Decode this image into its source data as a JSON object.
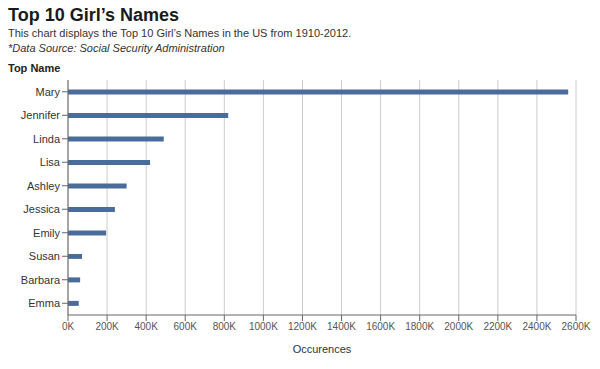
{
  "chart_data": {
    "type": "bar",
    "title": "Top 10 Girl’s Names",
    "subtitle": "This chart displays the Top 10 Girl’s Names in the US from 1910-2012.",
    "source": "*Data Source: Social Security Administration",
    "ylabel": "Top Name",
    "xlabel": "Occurences",
    "orientation": "horizontal",
    "categories": [
      "Mary",
      "Jennifer",
      "Linda",
      "Lisa",
      "Ashley",
      "Jessica",
      "Emily",
      "Susan",
      "Barbara",
      "Emma"
    ],
    "values": [
      2560000,
      820000,
      490000,
      420000,
      300000,
      240000,
      195000,
      72000,
      62000,
      55000
    ],
    "color": "#4a6c9b",
    "xlim": [
      0,
      2600000
    ],
    "xticks": [
      {
        "value": 0,
        "label": "0K"
      },
      {
        "value": 200000,
        "label": "200K"
      },
      {
        "value": 400000,
        "label": "400K"
      },
      {
        "value": 600000,
        "label": "600K"
      },
      {
        "value": 800000,
        "label": "800K"
      },
      {
        "value": 1000000,
        "label": "1000K"
      },
      {
        "value": 1200000,
        "label": "1200K"
      },
      {
        "value": 1400000,
        "label": "1400K"
      },
      {
        "value": 1600000,
        "label": "1600K"
      },
      {
        "value": 1800000,
        "label": "1800K"
      },
      {
        "value": 2000000,
        "label": "2000K"
      },
      {
        "value": 2200000,
        "label": "2200K"
      },
      {
        "value": 2400000,
        "label": "2400K"
      },
      {
        "value": 2600000,
        "label": "2600K"
      }
    ],
    "grid": true
  }
}
